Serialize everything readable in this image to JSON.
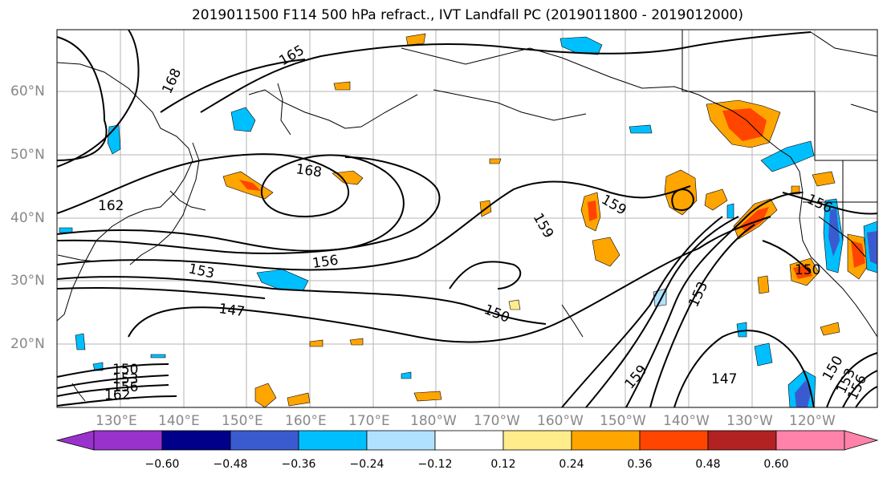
{
  "title": "2019011500 F114 500 hPa refract., IVT Landfall PC (2019011800 - 2019012000)",
  "lat_labels": [
    "60°N",
    "50°N",
    "40°N",
    "30°N",
    "20°N"
  ],
  "lon_labels": [
    "130°E",
    "140°E",
    "150°E",
    "160°E",
    "170°E",
    "180°W",
    "170°W",
    "160°W",
    "150°W",
    "140°W",
    "130°W",
    "120°W"
  ],
  "contour_labels": [
    "165",
    "168",
    "168",
    "162",
    "159",
    "159",
    "156",
    "153",
    "156",
    "150",
    "150",
    "147",
    "153",
    "147",
    "150",
    "159",
    "153",
    "156",
    "150",
    "153",
    "156",
    "162"
  ],
  "colorbar": {
    "ticks": [
      "−0.60",
      "−0.48",
      "−0.36",
      "−0.24",
      "−0.12",
      "0.12",
      "0.24",
      "0.36",
      "0.48",
      "0.60"
    ],
    "colors": [
      "#9932cc",
      "#00008b",
      "#3a5bcf",
      "#00bfff",
      "#b0e2ff",
      "#ffffff",
      "#ffec8b",
      "#ffa500",
      "#ff4500",
      "#b22222",
      "#ff82ab"
    ]
  }
}
